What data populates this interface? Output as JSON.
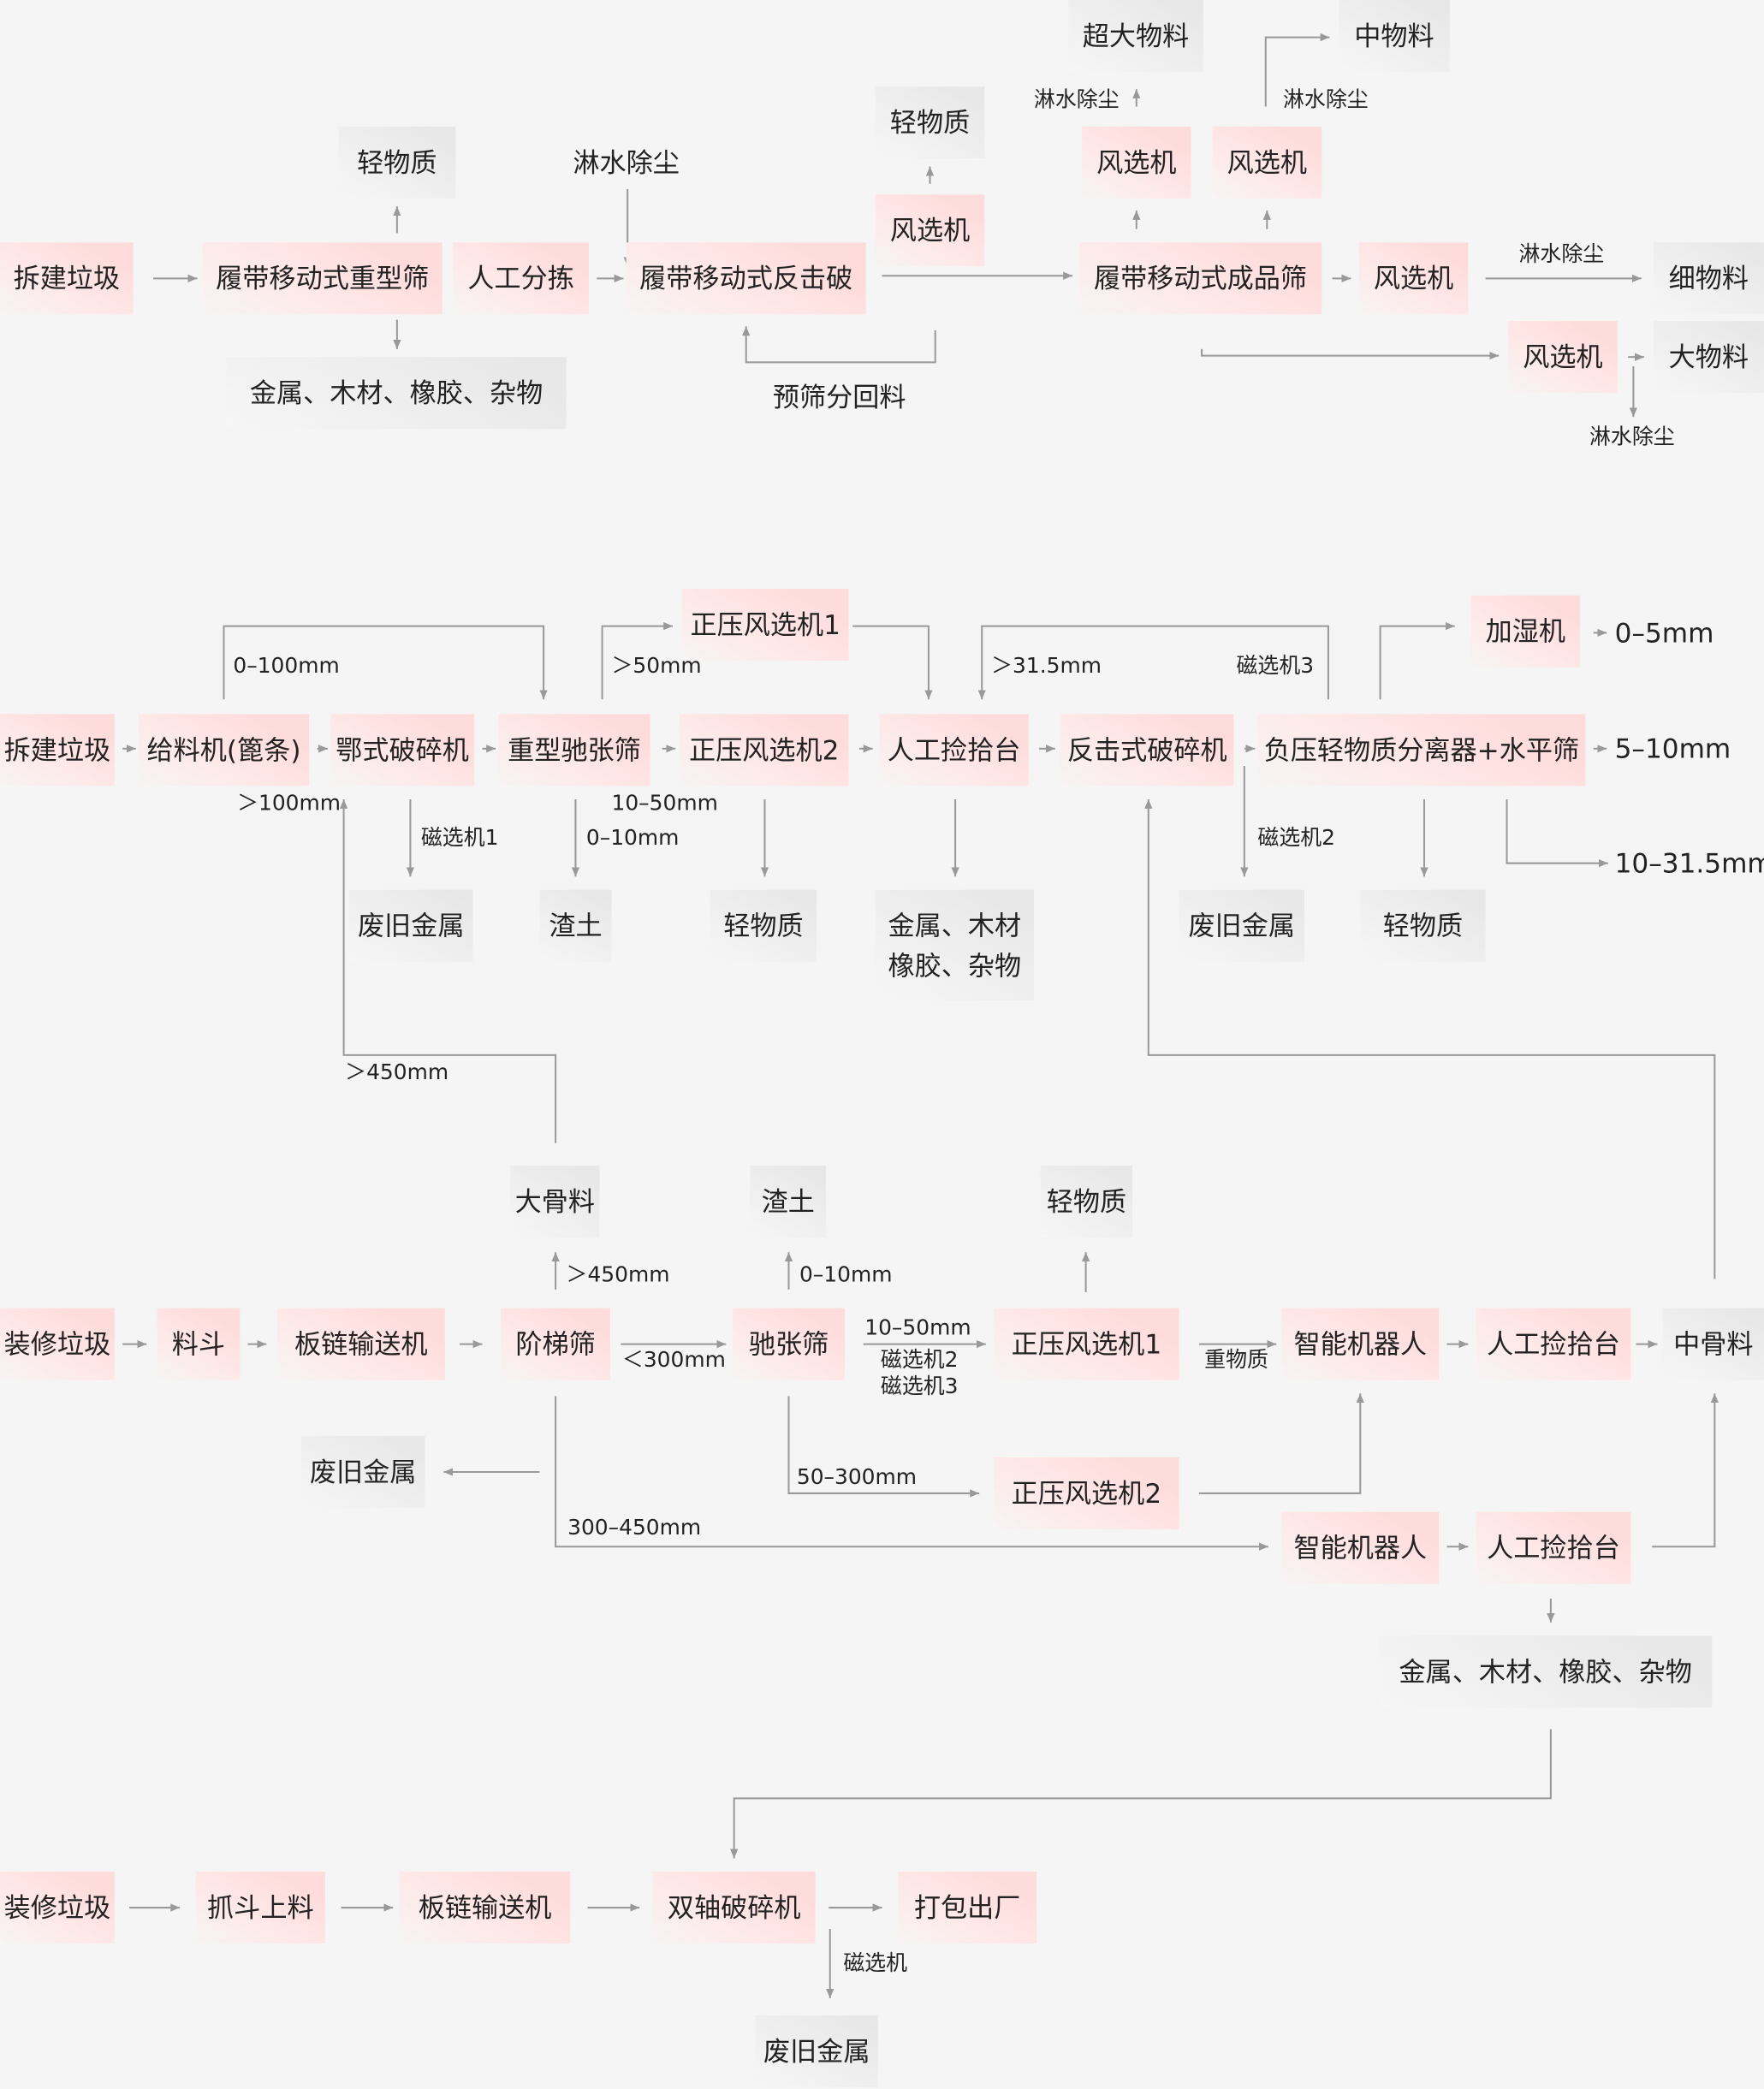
{
  "colors": {
    "background": "#f5f5f5",
    "process_box": "#ffdcdc",
    "output_box": "#e7e7e7",
    "connector": "#999999"
  },
  "nodes": {
    "s1_src": "拆建垃圾",
    "s1_heavy": "履带移动式重型筛",
    "s1_manual": "人工分拣",
    "s1_impact": "履带移动式反击破",
    "s1_light1": "轻物质",
    "s1_mixed": "金属、木材、橡胶、杂物",
    "s1_wind1": "风选机",
    "s1_light2": "轻物质",
    "s1_finish": "履带移动式成品筛",
    "s1_wind2": "风选机",
    "s1_wind3": "风选机",
    "s1_oversize": "超大物料",
    "s1_medium": "中物料",
    "s1_wind4": "风选机",
    "s1_fine": "细物料",
    "s1_wind5": "风选机",
    "s1_large": "大物料",
    "s2_src": "拆建垃圾",
    "s2_feeder": "给料机(篦条)",
    "s2_jaw": "鄂式破碎机",
    "s2_screen": "重型驰张筛",
    "s2_wind2": "正压风选机2",
    "s2_pick": "人工捡拾台",
    "s2_impact": "反击式破碎机",
    "s2_sep": "负压轻物质分离器+水平筛",
    "s2_wind1": "正压风选机1",
    "s2_humid": "加湿机",
    "s2_metal1": "废旧金属",
    "s2_soil": "渣土",
    "s2_light1": "轻物质",
    "s2_mixed": "金属、木材\n橡胶、杂物",
    "s2_metal2": "废旧金属",
    "s2_light2": "轻物质",
    "s3_src": "装修垃圾",
    "s3_hopper": "料斗",
    "s3_conv": "板链输送机",
    "s3_step": "阶梯筛",
    "s3_screen": "驰张筛",
    "s3_wind1": "正压风选机1",
    "s3_robot1": "智能机器人",
    "s3_pick1": "人工捡拾台",
    "s3_mid": "中骨料",
    "s3_agg": "大骨料",
    "s3_soil": "渣土",
    "s3_light": "轻物质",
    "s3_metal": "废旧金属",
    "s3_wind2": "正压风选机2",
    "s3_robot2": "智能机器人",
    "s3_pick2": "人工捡拾台",
    "s3_mixed": "金属、木材、橡胶、杂物",
    "s4_src": "装修垃圾",
    "s4_grab": "抓斗上料",
    "s4_conv": "板链输送机",
    "s4_shred": "双轴破碎机",
    "s4_pack": "打包出厂",
    "s4_metal": "废旧金属"
  },
  "labels": {
    "s1_spray_main": "淋水除尘",
    "s1_return": "预筛分回料",
    "s1_spray_a": "淋水除尘",
    "s1_spray_b": "淋水除尘",
    "s1_spray_c": "淋水除尘",
    "s1_spray_d": "淋水除尘",
    "s2_0_100": "0–100mm",
    "s2_gt50": "＞50mm",
    "s2_gt31": "＞31.5mm",
    "s2_mag3": "磁选机3",
    "s2_gt100": "＞100mm",
    "s2_mag1": "磁选机1",
    "s2_10_50": "10–50mm",
    "s2_0_10": "0–10mm",
    "s2_mag2": "磁选机2",
    "s2_gt450": "＞450mm",
    "s2_0_5": "0–5mm",
    "s2_5_10": "5–10mm",
    "s2_10_31": "10–31.5mm",
    "s3_gt450": "＞450mm",
    "s3_0_10": "0–10mm",
    "s3_lt300": "＜300mm",
    "s3_10_50": "10–50mm",
    "s3_mag2": "磁选机2",
    "s3_mag3": "磁选机3",
    "s3_heavy": "重物质",
    "s3_50_300": "50–300mm",
    "s3_300_450": "300–450mm",
    "s4_mag": "磁选机"
  }
}
